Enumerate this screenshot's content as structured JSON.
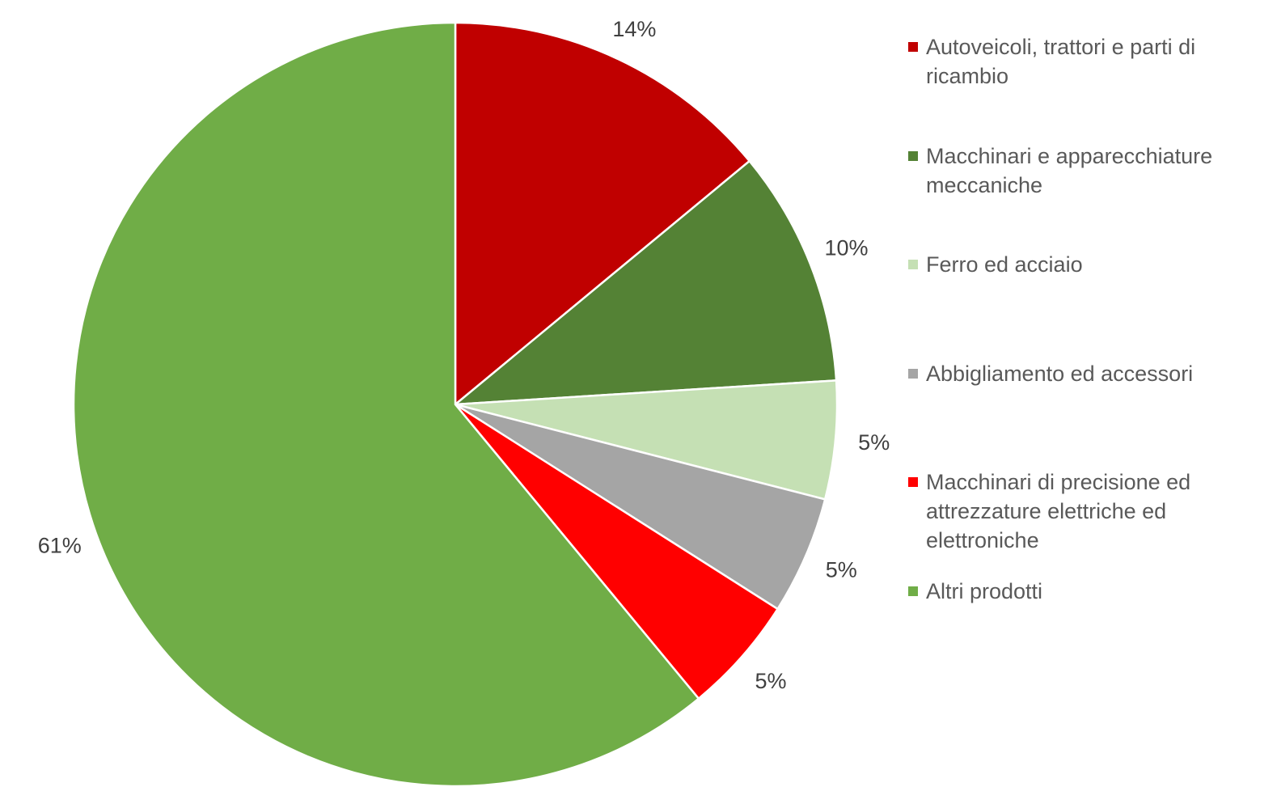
{
  "chart_data": {
    "type": "pie",
    "categories": [
      "Autoveicoli, trattori e parti di ricambio",
      "Macchinari e apparecchiature meccaniche",
      "Ferro ed acciaio",
      "Abbigliamento ed accessori",
      "Macchinari di precisione ed attrezzature elettriche ed elettroniche",
      "Altri prodotti"
    ],
    "values": [
      14,
      10,
      5,
      5,
      5,
      61
    ],
    "value_labels": [
      "14%",
      "10%",
      "5%",
      "5%",
      "5%",
      "61%"
    ],
    "colors": [
      "#c00000",
      "#548235",
      "#c5e0b4",
      "#a5a5a5",
      "#ff0000",
      "#70ad47"
    ],
    "legend": "right"
  }
}
